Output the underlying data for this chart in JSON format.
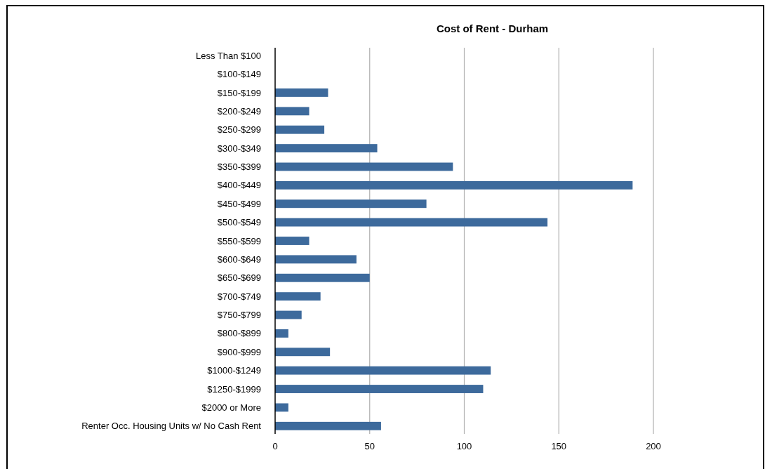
{
  "chart_data": {
    "type": "bar",
    "orientation": "horizontal",
    "title": "Cost of Rent - Durham",
    "categories": [
      "Less Than $100",
      "$100-$149",
      "$150-$199",
      "$200-$249",
      "$250-$299",
      "$300-$349",
      "$350-$399",
      "$400-$449",
      "$450-$499",
      "$500-$549",
      "$550-$599",
      "$600-$649",
      "$650-$699",
      "$700-$749",
      "$750-$799",
      "$800-$899",
      "$900-$999",
      "$1000-$1249",
      "$1250-$1999",
      "$2000 or More",
      "Renter Occ. Housing Units w/ No Cash Rent"
    ],
    "values": [
      0,
      0,
      28,
      18,
      26,
      54,
      94,
      189,
      80,
      144,
      18,
      43,
      50,
      24,
      14,
      7,
      29,
      114,
      110,
      7,
      56
    ],
    "color": "#3d6a9c",
    "xlim": [
      0,
      200
    ],
    "xticks": [
      0,
      50,
      100,
      150,
      200
    ],
    "grid": "x"
  }
}
